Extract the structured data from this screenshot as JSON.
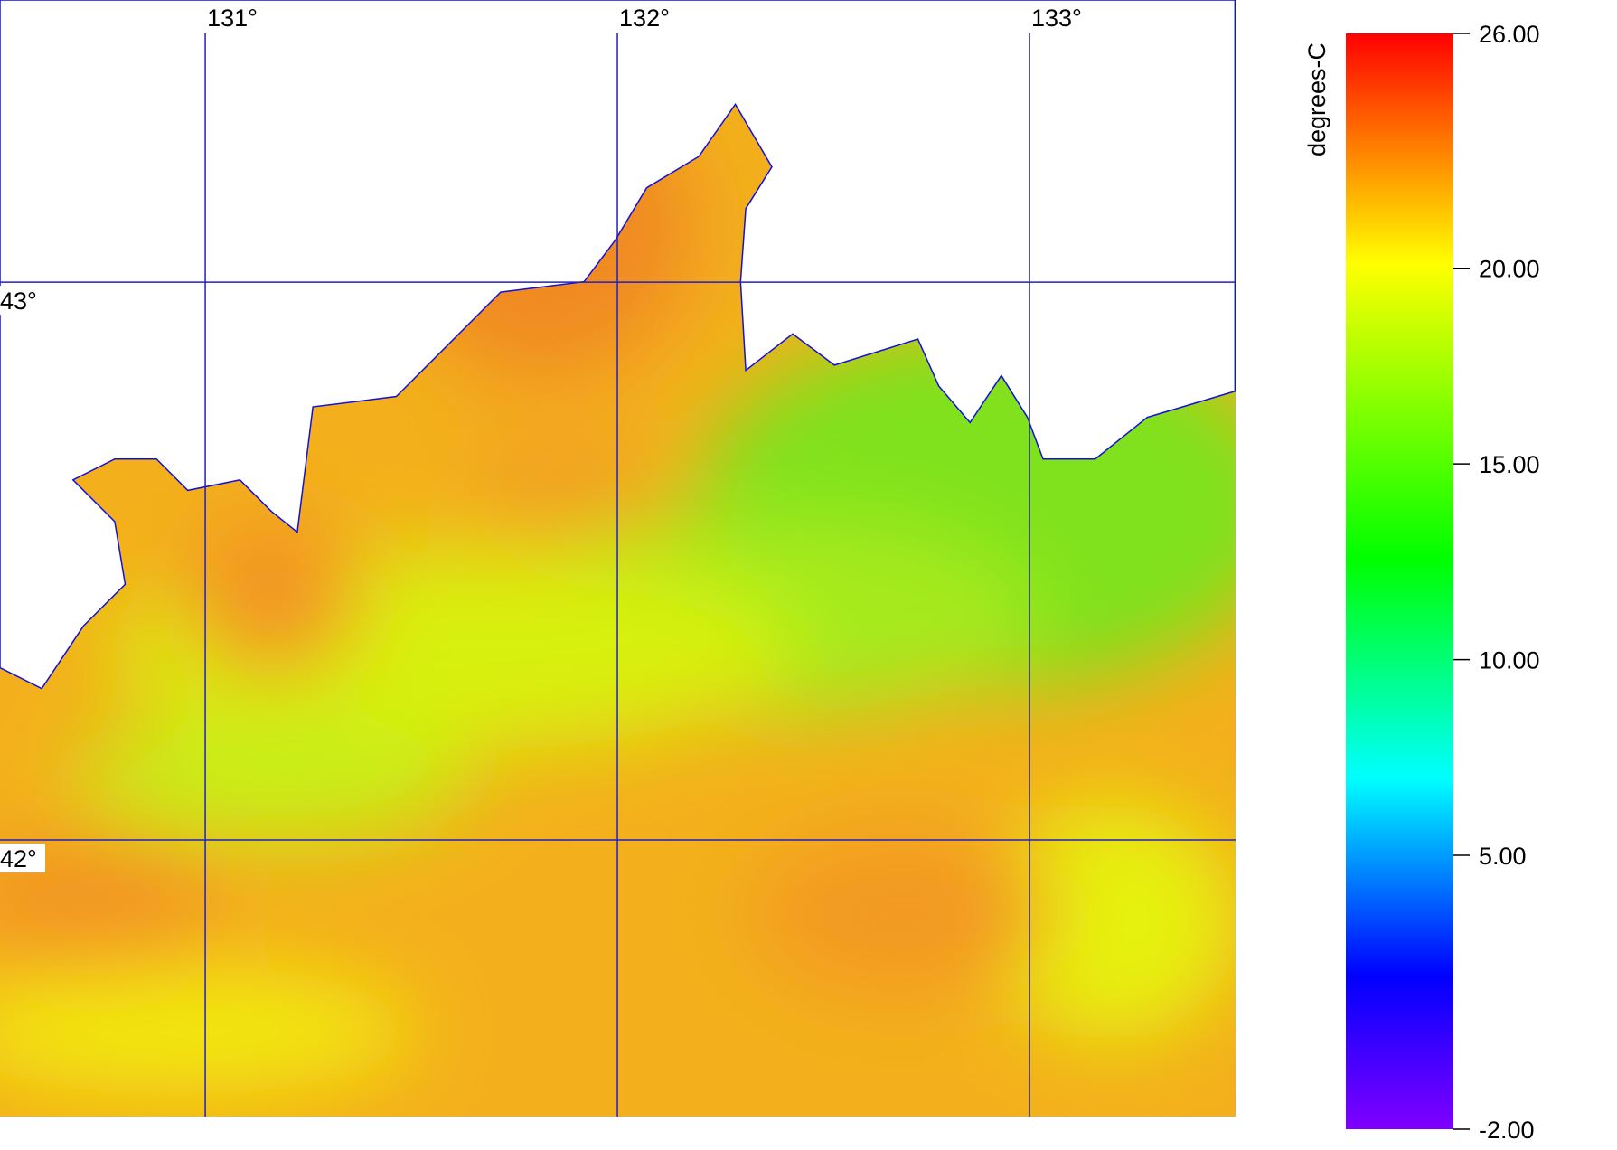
{
  "map": {
    "lon_ticks": [
      {
        "value": 131,
        "label": "131°"
      },
      {
        "value": 132,
        "label": "132°"
      },
      {
        "value": 133,
        "label": "133°"
      }
    ],
    "lat_ticks": [
      {
        "value": 43,
        "label": "43°"
      },
      {
        "value": 42,
        "label": "42°"
      }
    ],
    "xlim": [
      130.502,
      133.5
    ],
    "ylim": [
      41.504,
      43.506
    ],
    "grid_color": "#2020c0"
  },
  "colorbar": {
    "label": "degrees-C",
    "range": [
      -2,
      26
    ],
    "ticks": [
      {
        "value": 26,
        "label": "26.00"
      },
      {
        "value": 20,
        "label": "20.00"
      },
      {
        "value": 15,
        "label": "15.00"
      },
      {
        "value": 10,
        "label": "10.00"
      },
      {
        "value": 5,
        "label": "5.00"
      },
      {
        "value": -2,
        "label": "-2.00"
      }
    ]
  }
}
